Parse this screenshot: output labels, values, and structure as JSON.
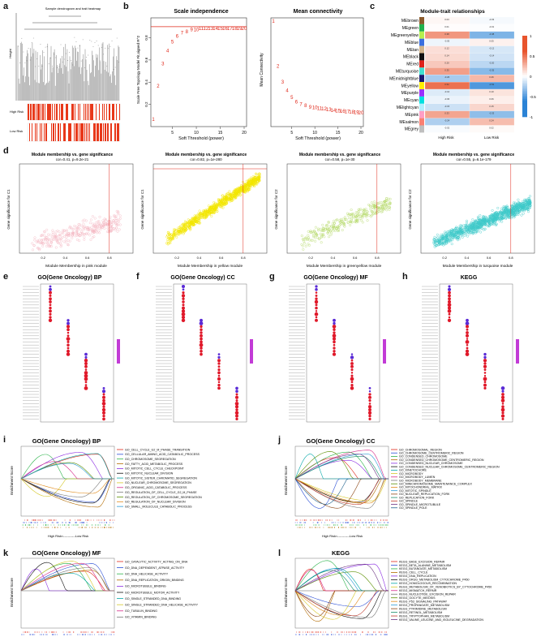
{
  "figure": {
    "panel_labels": {
      "a": "a",
      "b": "b",
      "c": "c",
      "d": "d",
      "e": "e",
      "f": "f",
      "g": "g",
      "h": "h",
      "i": "i",
      "j": "j",
      "k": "k",
      "l": "l"
    }
  },
  "panel_a": {
    "title": "Sample dendrogram and trait heatmap",
    "ylabel": "Height",
    "tracks": [
      "High Risk",
      "Low Risk"
    ]
  },
  "panel_b": {
    "scale": {
      "title": "Scale independence",
      "xlabel": "Soft Threshold (power)",
      "ylabel": "Scale Free Topology Model Fit,signed R^2",
      "xticks": [
        "5",
        "10",
        "15",
        "20"
      ],
      "yticks": [
        "0.2",
        "0.4",
        "0.6",
        "0.8"
      ]
    },
    "mean": {
      "title": "Mean connectivity",
      "xlabel": "Soft Threshold (power)",
      "ylabel": "Mean Connectivity",
      "xticks": [
        "5",
        "10",
        "15",
        "20"
      ]
    }
  },
  "panel_c": {
    "title": "Module-trait relationships",
    "modules": [
      "MEbrown",
      "MEgreen",
      "MEgreenyellow",
      "MEblue",
      "MEtan",
      "MEblack",
      "MEred",
      "MEturquoise",
      "MEmidnightblue",
      "MEyellow",
      "MEpurple",
      "MEcyan",
      "MElightcyan",
      "MEpink",
      "MEsalmon",
      "MEgrey"
    ],
    "traits": [
      "High Risk",
      "Low Risk"
    ],
    "legend_ticks": [
      "1",
      "0.5",
      "0",
      "-0.5",
      "-1"
    ]
  },
  "panel_d": [
    {
      "title": "Module membership vs. gene significance",
      "subtitle": "cor=0.41, p=9.2e-21",
      "xlabel": "Module Membership in pink module",
      "ylabel": "Gene significance for C1",
      "color": "#f4b6c2"
    },
    {
      "title": "Module membership vs. gene significance",
      "subtitle": "cor=0.82, p=1e-280",
      "xlabel": "Module Membership in yellow module",
      "ylabel": "Gene significance for C1",
      "color": "#f2e600"
    },
    {
      "title": "Module membership vs. gene significance",
      "subtitle": "cor=0.58, p=1e-30",
      "xlabel": "Module Membership in greenyellow module",
      "ylabel": "Gene significance for C2",
      "color": "#b5d96a"
    },
    {
      "title": "Module membership vs. gene significance",
      "subtitle": "cor=0.55, p=6.1e-179",
      "xlabel": "Module Membership in turquoise module",
      "ylabel": "Gene significance for C2",
      "color": "#3ec9c9"
    }
  ],
  "panel_dots": [
    {
      "title": "GO(Gene Oncology) BP"
    },
    {
      "title": "GO(Gene Oncology) CC"
    },
    {
      "title": "GO(Gene Oncology) MF"
    },
    {
      "title": "KEGG"
    }
  ],
  "panel_gsea": [
    {
      "title": "GO(Gene Oncology) BP",
      "ylabel": "Enrichment Score",
      "axis_labels": "High Risk<-----------Low Risk",
      "terms": [
        "GO_CELL_CYCLE_G2_M_PHASE_TRANSITION",
        "GO_CELLULAR_AMINO_ACID_CATABOLIC_PROCESS",
        "GO_CHROMOSOME_SEGREGATION",
        "GO_FATTY_ACID_METABOLIC_PROCESS",
        "GO_MITOTIC_CELL_CYCLE_CHECKPOINT",
        "GO_MITOTIC_NUCLEAR_DIVISION",
        "GO_MITOTIC_SISTER_CHROMATID_SEGREGATION",
        "GO_NUCLEAR_CHROMOSOME_SEGREGATION",
        "GO_ORGANIC_ACID_CATABOLIC_PROCESS",
        "GO_REGULATION_OF_CELL_CYCLE_G2_M_PHASE",
        "GO_REGULATION_OF_CHROMOSOME_SEGREGATION",
        "GO_REGULATION_OF_NUCLEAR_DIVISION",
        "GO_SMALL_MOLECULE_CATABOLIC_PROCESS"
      ]
    },
    {
      "title": "GO(Gene Oncology) CC",
      "ylabel": "Enrichment Score",
      "axis_labels": "High Risk<-----------Low Risk",
      "terms": [
        "GO_CHROMOSOMAL_REGION",
        "GO_CHROMOSOME_CENTROMERIC_REGION",
        "GO_CONDENSED_CHROMOSOME",
        "GO_CONDENSED_CHROMOSOME_CENTROMERIC_REGION",
        "GO_CONDENSED_NUCLEAR_CHROMOSOME",
        "GO_CONDENSED_NUCLEAR_CHROMOSOME_CENTROMERIC_REGION",
        "GO_KINETOCHORE",
        "GO_MICROBODY",
        "GO_MICROBODY_LUMEN",
        "GO_MICROBODY_MEMBRANE",
        "GO_MINICHROMOSOME_MAINTENANCE_COMPLEX",
        "GO_MITOCHONDRIAL_MATRIX",
        "GO_MITOTIC_SPINDLE",
        "GO_NUCLEAR_REPLICATION_FORK",
        "GO_REPLICATION_FORK",
        "GO_SPINDLE",
        "GO_SPINDLE_MICROTUBULE",
        "GO_SPINDLE_POLE"
      ]
    },
    {
      "title": "GO(Gene Oncology) MF",
      "ylabel": "Enrichment Score",
      "axis_labels": "High Risk<-----------Low Risk",
      "terms": [
        "GO_CATALYTIC_ACTIVITY_ACTING_ON_DNA",
        "GO_DNA_DEPENDENT_ATPASE_ACTIVITY",
        "GO_DNA_HELICASE_ACTIVITY",
        "GO_DNA_REPLICATION_ORIGIN_BINDING",
        "GO_MICROTUBULE_BINDING",
        "GO_MICROTUBULE_MOTOR_ACTIVITY",
        "GO_SINGLE_STRANDED_DNA_BINDING",
        "GO_SINGLE_STRANDED_DNA_HELICASE_ACTIVITY",
        "GO_TUBULIN_BINDING",
        "GO_VITAMIN_BINDING"
      ]
    },
    {
      "title": "KEGG",
      "ylabel": "Enrichment Score",
      "axis_labels": "High Risk<-----------Low Risk",
      "terms": [
        "KEGG_BASE_EXCISION_REPAIR",
        "KEGG_BETA_ALANINE_METABOLISM",
        "KEGG_BUTANOATE_METABOLISM",
        "KEGG_CELL_CYCLE",
        "KEGG_DNA_REPLICATION",
        "KEGG_DRUG_METABOLISM_CYTOCHROME_P450",
        "KEGG_HOMOLOGOUS_RECOMBINATION",
        "KEGG_METABOLISM_OF_XENOBIOTICS_BY_CYTOCHROME_P450",
        "KEGG_MISMATCH_REPAIR",
        "KEGG_NUCLEOTIDE_EXCISION_REPAIR",
        "KEGG_OOCYTE_MEIOSIS",
        "KEGG_P53_SIGNALING_PATHWAY",
        "KEGG_PROPANOATE_METABOLISM",
        "KEGG_PYRIMIDINE_METABOLISM",
        "KEGG_RETINOL_METABOLISM",
        "KEGG_TRYPTOPHAN_METABOLISM",
        "KEGG_VALINE_LEUCINE_AND_ISOLEUCINE_DEGRADATION"
      ]
    }
  ],
  "chart_data": [
    {
      "type": "scatter",
      "title": "Scale independence",
      "xlabel": "Soft Threshold (power)",
      "ylabel": "Scale Free Topology Model Fit,signed R^2",
      "x": [
        1,
        2,
        3,
        4,
        5,
        6,
        7,
        8,
        9,
        10,
        11,
        12,
        13,
        14,
        15,
        16,
        17,
        18,
        19,
        20
      ],
      "y": [
        0.05,
        0.35,
        0.55,
        0.67,
        0.75,
        0.8,
        0.83,
        0.84,
        0.86,
        0.86,
        0.87,
        0.87,
        0.87,
        0.87,
        0.87,
        0.87,
        0.87,
        0.87,
        0.87,
        0.87
      ],
      "xlim": [
        1,
        20
      ],
      "ylim": [
        0,
        0.95
      ],
      "threshold_line": 0.9
    },
    {
      "type": "scatter",
      "title": "Mean connectivity",
      "xlabel": "Soft Threshold (power)",
      "ylabel": "Mean Connectivity",
      "x": [
        1,
        2,
        3,
        4,
        5,
        6,
        7,
        8,
        9,
        10,
        11,
        12,
        13,
        14,
        15,
        16,
        17,
        18,
        19,
        20
      ],
      "y": [
        1000,
        320,
        170,
        110,
        70,
        50,
        40,
        35,
        30,
        28,
        26,
        24,
        22,
        20,
        19,
        18,
        17,
        16,
        15,
        14
      ],
      "xlim": [
        1,
        20
      ]
    },
    {
      "type": "heatmap",
      "title": "Module-trait relationships",
      "rows": [
        "MEbrown",
        "MEgreen",
        "MEgreenyellow",
        "MEblue",
        "MEtan",
        "MEblack",
        "MEred",
        "MEturquoise",
        "MEmidnightblue",
        "MEyellow",
        "MEpurple",
        "MEcyan",
        "MElightcyan",
        "MEpink",
        "MEsalmon",
        "MEgrey"
      ],
      "columns": [
        "High Risk",
        "Low Risk"
      ],
      "values": [
        [
          0.03,
          -0.03
        ],
        [
          0.01,
          -0.01
        ],
        [
          0.38,
          -0.38
        ],
        [
          -0.05,
          0.05
        ],
        [
          0.12,
          -0.12
        ],
        [
          0.14,
          -0.14
        ],
        [
          0.2,
          -0.2
        ],
        [
          0.35,
          -0.35
        ],
        [
          -0.26,
          0.26
        ],
        [
          0.52,
          -0.52
        ],
        [
          -0.1,
          0.1
        ],
        [
          -0.06,
          0.06
        ],
        [
          -0.15,
          0.15
        ],
        [
          0.33,
          -0.33
        ],
        [
          -0.24,
          0.24
        ],
        [
          -0.02,
          0.02
        ]
      ],
      "colorscale": [
        "#2b83d6",
        "#ffffff",
        "#e8542d"
      ],
      "range": [
        -1,
        1
      ]
    }
  ]
}
